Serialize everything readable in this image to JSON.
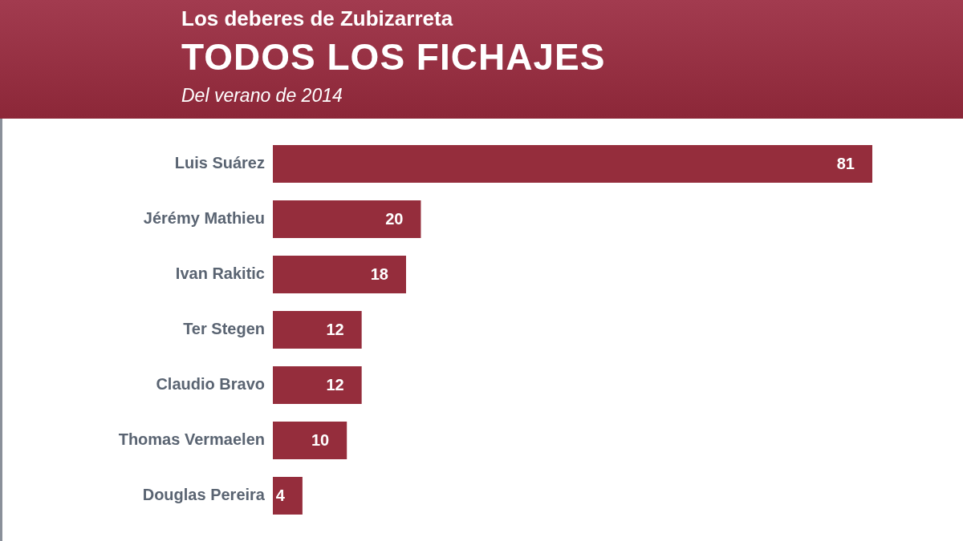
{
  "chart_data": {
    "type": "bar",
    "orientation": "horizontal",
    "title": "TODOS LOS FICHAJES",
    "subtitle": "Del verano de 2014",
    "annotations": [
      "Los deberes de Zubizarreta"
    ],
    "categories": [
      "Luis Suárez",
      "Jérémy Mathieu",
      "Ivan Rakitic",
      "Ter Stegen",
      "Claudio Bravo",
      "Thomas Vermaelen",
      "Douglas Pereira"
    ],
    "values": [
      81,
      20,
      18,
      12,
      12,
      10,
      4
    ],
    "color": "#952d3c",
    "data_labels": true,
    "grid": false,
    "legend": false,
    "tick_labels": "y"
  }
}
